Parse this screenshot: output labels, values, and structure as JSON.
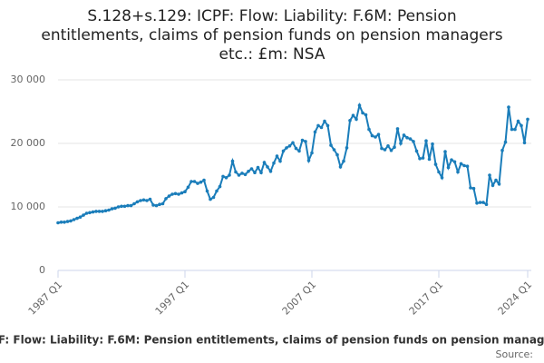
{
  "chart_data": {
    "type": "line",
    "title_lines": [
      "S.128+s.129: ICPF: Flow: Liability: F.6M: Pension",
      "entitlements, claims of pension funds on pension managers",
      "etc.: £m: NSA"
    ],
    "categories": [
      "1987 Q1",
      null,
      null,
      null,
      null,
      null,
      null,
      null,
      null,
      null,
      null,
      null,
      null,
      null,
      null,
      null,
      null,
      null,
      null,
      null,
      null,
      null,
      null,
      null,
      null,
      null,
      null,
      null,
      null,
      null,
      null,
      null,
      null,
      null,
      null,
      null,
      null,
      null,
      null,
      null,
      "1997 Q1",
      null,
      null,
      null,
      null,
      null,
      null,
      null,
      null,
      null,
      null,
      null,
      null,
      null,
      null,
      null,
      null,
      null,
      null,
      null,
      null,
      null,
      null,
      null,
      null,
      null,
      null,
      null,
      null,
      null,
      null,
      null,
      null,
      null,
      null,
      null,
      null,
      null,
      null,
      null,
      "2007 Q1",
      null,
      null,
      null,
      null,
      null,
      null,
      null,
      null,
      null,
      null,
      null,
      null,
      null,
      null,
      null,
      null,
      null,
      null,
      null,
      null,
      null,
      null,
      null,
      null,
      null,
      null,
      null,
      null,
      null,
      null,
      null,
      null,
      null,
      null,
      null,
      null,
      null,
      null,
      null,
      "2017 Q1",
      null,
      null,
      null,
      null,
      null,
      null,
      null,
      null,
      null,
      null,
      null,
      null,
      null,
      null,
      null,
      null,
      null,
      null,
      null,
      null,
      null,
      null,
      null,
      null,
      null,
      null,
      null,
      "2024 Q1"
    ],
    "series": [
      {
        "name": "S.128+s.129: ICPF: Flow: Liability: F.6M: Pension entitlements, claims of pension funds on pension managers etc.: £m: NSA",
        "color": "#1a7dba",
        "values": [
          7500,
          7600,
          7600,
          7700,
          7800,
          8000,
          8200,
          8400,
          8700,
          9000,
          9100,
          9200,
          9300,
          9300,
          9300,
          9400,
          9500,
          9700,
          9800,
          10000,
          10100,
          10100,
          10200,
          10200,
          10500,
          10800,
          11000,
          11100,
          11000,
          11200,
          10300,
          10200,
          10400,
          10500,
          11300,
          11700,
          12000,
          12100,
          12000,
          12200,
          12400,
          13100,
          14000,
          14000,
          13700,
          13900,
          14200,
          12500,
          11200,
          11500,
          12500,
          13200,
          14800,
          14600,
          15000,
          17200,
          15500,
          15000,
          15300,
          15100,
          15600,
          16000,
          15400,
          16200,
          15400,
          17000,
          16300,
          15600,
          16900,
          18000,
          17200,
          18800,
          19300,
          19600,
          20100,
          19200,
          18800,
          20500,
          20300,
          17300,
          18500,
          21800,
          22800,
          22500,
          23500,
          22800,
          19700,
          19000,
          18200,
          16300,
          17200,
          19300,
          23600,
          24400,
          23800,
          26000,
          24800,
          24500,
          22200,
          21200,
          21000,
          21400,
          19200,
          19000,
          19600,
          18900,
          19400,
          22300,
          20000,
          21300,
          20900,
          20700,
          20300,
          18800,
          17600,
          17700,
          20400,
          17500,
          19900,
          16700,
          15500,
          14600,
          18700,
          16200,
          17400,
          17100,
          15500,
          16800,
          16500,
          16400,
          13000,
          12900,
          10600,
          10700,
          10700,
          10400,
          15000,
          13400,
          14200,
          13600,
          18900,
          20200,
          25700,
          22200,
          22200,
          23500,
          22800,
          20100,
          23800
        ]
      }
    ],
    "ylim": [
      0,
      30000
    ],
    "yticks": [
      0,
      {
        "value": 10000,
        "label": "10 000"
      },
      {
        "value": 20000,
        "label": "20 000"
      },
      {
        "value": 30000,
        "label": "30 000"
      }
    ],
    "grid": true,
    "source": "Source:"
  }
}
